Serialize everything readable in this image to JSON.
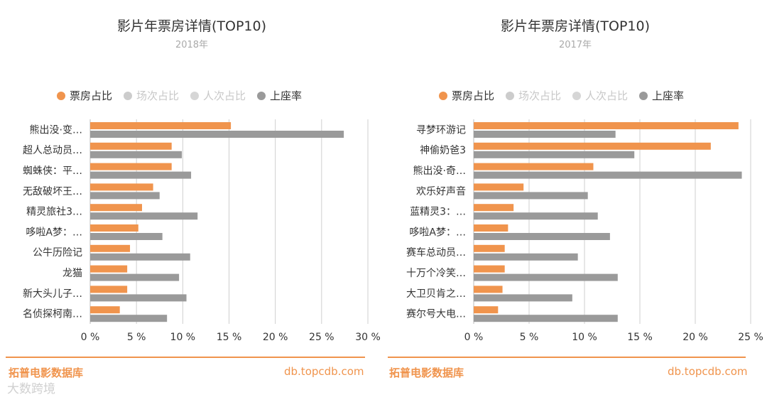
{
  "colors": {
    "box_office": "#f0944d",
    "screenings": "#cccccc",
    "admissions": "#d6d6d6",
    "occupancy": "#9a9a9a",
    "brand": "#f0944d",
    "grid": "#cfcfcf"
  },
  "footer": {
    "brand": "拓普电影数据库",
    "url": "db.topcdb.com"
  },
  "watermark": "大数跨境",
  "chart_data": [
    {
      "type": "bar",
      "orientation": "horizontal",
      "title": "影片年票房详情(TOP10)",
      "subtitle": "2018年",
      "legend": [
        "票房占比",
        "场次占比",
        "人次占比",
        "上座率"
      ],
      "categories": [
        "熊出没·变…",
        "超人总动员…",
        "蜘蛛侠：平…",
        "无敌破坏王…",
        "精灵旅社3…",
        "哆啦A梦：…",
        "公牛历险记",
        "龙猫",
        "新大头儿子…",
        "名侦探柯南…"
      ],
      "series": [
        {
          "name": "票房占比",
          "values": [
            15.2,
            8.8,
            8.8,
            6.8,
            5.6,
            5.2,
            4.3,
            4.0,
            4.0,
            3.2
          ]
        },
        {
          "name": "上座率",
          "values": [
            27.4,
            9.9,
            10.9,
            7.5,
            11.6,
            7.8,
            10.8,
            9.6,
            10.4,
            8.3
          ]
        }
      ],
      "xlim": [
        0,
        30
      ],
      "ticks": [
        "0 %",
        "5 %",
        "10 %",
        "15 %",
        "20 %",
        "25 %",
        "30 %"
      ]
    },
    {
      "type": "bar",
      "orientation": "horizontal",
      "title": "影片年票房详情(TOP10)",
      "subtitle": "2017年",
      "legend": [
        "票房占比",
        "场次占比",
        "人次占比",
        "上座率"
      ],
      "categories": [
        "寻梦环游记",
        "神偷奶爸3",
        "熊出没·奇…",
        "欢乐好声音",
        "蓝精灵3：…",
        "哆啦A梦：…",
        "赛车总动员…",
        "十万个冷笑…",
        "大卫贝肯之…",
        "赛尔号大电…"
      ],
      "series": [
        {
          "name": "票房占比",
          "values": [
            23.9,
            21.4,
            10.8,
            4.5,
            3.6,
            3.1,
            2.8,
            2.8,
            2.6,
            2.2
          ]
        },
        {
          "name": "上座率",
          "values": [
            12.8,
            14.5,
            24.2,
            10.3,
            11.2,
            12.3,
            9.4,
            13.0,
            8.9,
            13.0
          ]
        }
      ],
      "xlim": [
        0,
        25
      ],
      "ticks": [
        "0 %",
        "5 %",
        "10 %",
        "15 %",
        "20 %",
        "25 %"
      ]
    }
  ]
}
